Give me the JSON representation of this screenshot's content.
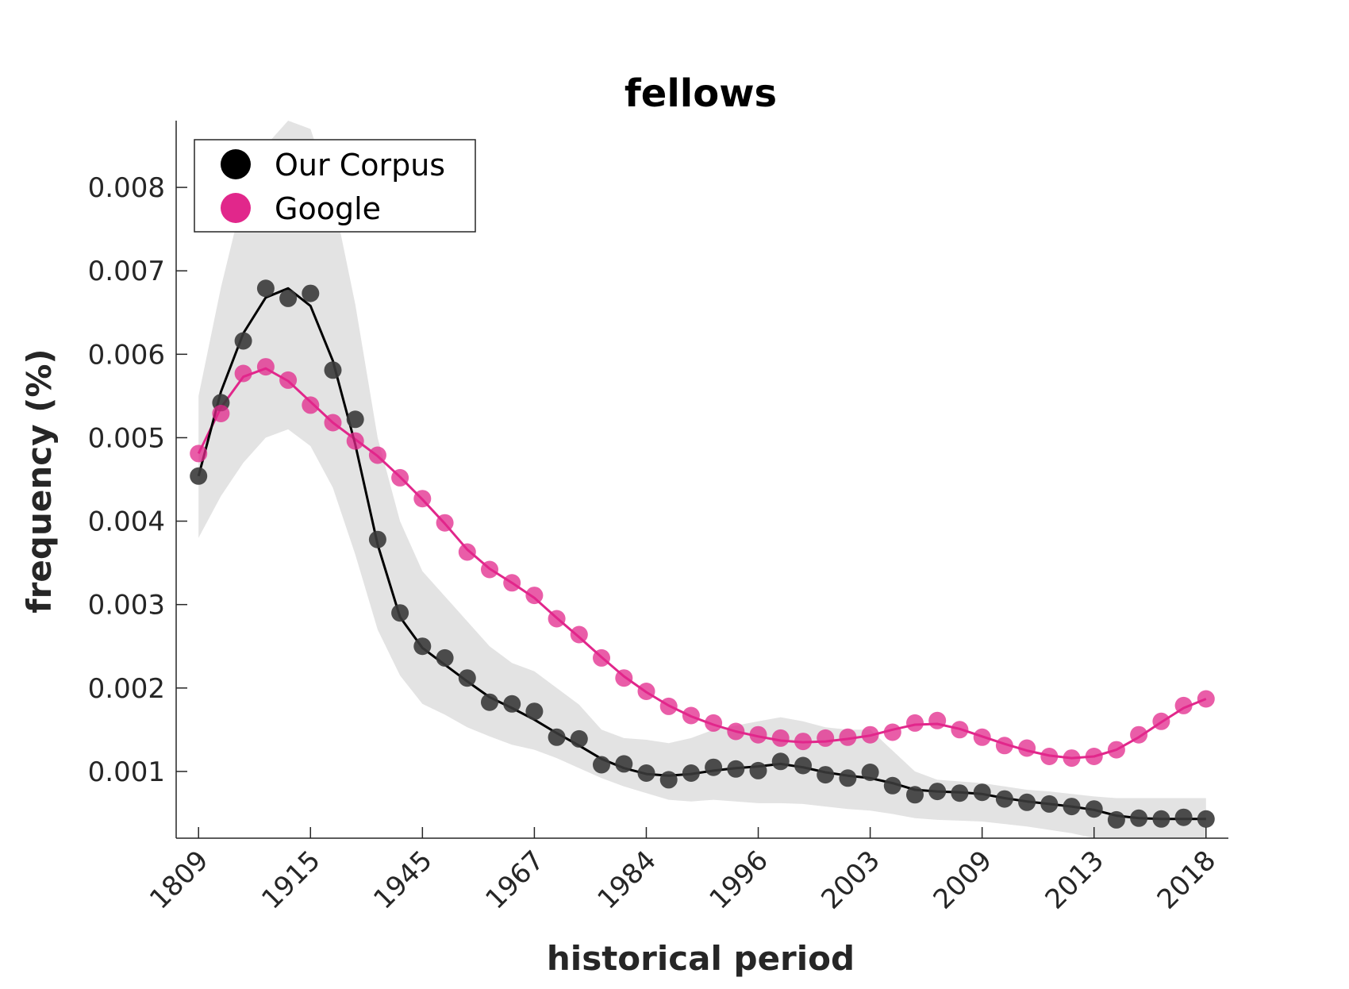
{
  "colors": {
    "corpus": "#000000",
    "corpus_marker": "#3a3a3a",
    "google": "#e1278b",
    "band": "#e3e3e3",
    "axis": "#262626"
  },
  "chart_data": {
    "type": "line",
    "title": "fellows",
    "xlabel": "historical period",
    "ylabel": "frequency (%)",
    "x_tick_labels": [
      "1809",
      "1915",
      "1945",
      "1967",
      "1984",
      "1996",
      "2003",
      "2009",
      "2013",
      "2018"
    ],
    "x_tick_positions": [
      1,
      6,
      11,
      16,
      21,
      26,
      31,
      36,
      41,
      46
    ],
    "x_index": [
      1,
      2,
      3,
      4,
      5,
      6,
      7,
      8,
      9,
      10,
      11,
      12,
      13,
      14,
      15,
      16,
      17,
      18,
      19,
      20,
      21,
      22,
      23,
      24,
      25,
      26,
      27,
      28,
      29,
      30,
      31,
      32,
      33,
      34,
      35,
      36,
      37,
      38,
      39,
      40,
      41,
      42,
      43,
      44,
      45,
      46
    ],
    "xlim": [
      0,
      47
    ],
    "ylim": [
      0.0002,
      0.0088
    ],
    "y_ticks": [
      0.001,
      0.002,
      0.003,
      0.004,
      0.005,
      0.006,
      0.007,
      0.008
    ],
    "y_tick_labels": [
      "0.001",
      "0.002",
      "0.003",
      "0.004",
      "0.005",
      "0.006",
      "0.007",
      "0.008"
    ],
    "legend": {
      "position": "top-left",
      "entries": [
        "Our Corpus",
        "Google"
      ]
    },
    "series": [
      {
        "name": "Our Corpus",
        "markers": [
          0.00454,
          0.00542,
          0.00616,
          0.00679,
          0.00667,
          0.00673,
          0.00581,
          0.00522,
          0.00378,
          0.0029,
          0.0025,
          0.00236,
          0.00212,
          0.00183,
          0.00181,
          0.00172,
          0.00141,
          0.00139,
          0.00108,
          0.00109,
          0.00098,
          0.0009,
          0.00098,
          0.00105,
          0.00103,
          0.00101,
          0.00112,
          0.00107,
          0.00096,
          0.00092,
          0.00099,
          0.00083,
          0.00072,
          0.00076,
          0.00074,
          0.00075,
          0.00067,
          0.00063,
          0.00061,
          0.00058,
          0.00055,
          0.00042,
          0.00044,
          0.00043,
          0.00045,
          0.00043
        ],
        "line": [
          0.00454,
          0.00555,
          0.00625,
          0.00668,
          0.00679,
          0.00658,
          0.00592,
          0.00492,
          0.00372,
          0.00285,
          0.00248,
          0.00228,
          0.00208,
          0.00189,
          0.00176,
          0.00162,
          0.00146,
          0.00131,
          0.00115,
          0.00104,
          0.00097,
          0.00095,
          0.00097,
          0.00101,
          0.00104,
          0.00106,
          0.00109,
          0.00105,
          0.00099,
          0.00095,
          0.00092,
          0.00086,
          0.00078,
          0.00076,
          0.00075,
          0.00073,
          0.00068,
          0.00064,
          0.00061,
          0.00058,
          0.00054,
          0.00047,
          0.00044,
          0.00043,
          0.00043,
          0.00043
        ],
        "band_upper": [
          0.0055,
          0.0068,
          0.0079,
          0.0085,
          0.0088,
          0.0087,
          0.0079,
          0.0066,
          0.005,
          0.004,
          0.0034,
          0.0031,
          0.0028,
          0.0025,
          0.0023,
          0.0022,
          0.002,
          0.0018,
          0.0015,
          0.0014,
          0.00138,
          0.00134,
          0.0014,
          0.0015,
          0.00155,
          0.0016,
          0.00165,
          0.0016,
          0.00153,
          0.0015,
          0.0015,
          0.00125,
          0.001,
          0.0009,
          0.00088,
          0.00086,
          0.00082,
          0.00078,
          0.00076,
          0.00073,
          0.0007,
          0.00068,
          0.00068,
          0.00068,
          0.00068,
          0.00068
        ],
        "band_lower": [
          0.0038,
          0.0043,
          0.0047,
          0.005,
          0.0051,
          0.0049,
          0.0044,
          0.0036,
          0.0027,
          0.00215,
          0.00181,
          0.00168,
          0.00153,
          0.00142,
          0.00132,
          0.00126,
          0.00116,
          0.00104,
          0.00092,
          0.00082,
          0.00074,
          0.00066,
          0.00064,
          0.00066,
          0.00064,
          0.00062,
          0.00062,
          0.00061,
          0.00058,
          0.00055,
          0.00053,
          0.00049,
          0.00044,
          0.00042,
          0.00041,
          0.0004,
          0.00037,
          0.00034,
          0.0003,
          0.00026,
          0.0002,
          0.0002,
          0.0002,
          0.0002,
          0.0002,
          0.0002
        ]
      },
      {
        "name": "Google",
        "markers": [
          0.00481,
          0.00529,
          0.00577,
          0.00585,
          0.00569,
          0.00539,
          0.00518,
          0.00496,
          0.00479,
          0.00452,
          0.00427,
          0.00398,
          0.00363,
          0.00342,
          0.00326,
          0.00311,
          0.00283,
          0.00264,
          0.00236,
          0.00212,
          0.00196,
          0.00178,
          0.00167,
          0.00158,
          0.00148,
          0.00144,
          0.0014,
          0.00136,
          0.0014,
          0.00141,
          0.00144,
          0.00147,
          0.00158,
          0.00161,
          0.0015,
          0.00141,
          0.00131,
          0.00128,
          0.00118,
          0.00116,
          0.00118,
          0.00126,
          0.00144,
          0.0016,
          0.00179,
          0.00187
        ],
        "line": [
          0.00481,
          0.00536,
          0.00573,
          0.00583,
          0.00568,
          0.00543,
          0.00518,
          0.00498,
          0.00478,
          0.00453,
          0.00426,
          0.00397,
          0.00366,
          0.00343,
          0.00326,
          0.00308,
          0.00284,
          0.00261,
          0.00237,
          0.00214,
          0.00195,
          0.00179,
          0.00166,
          0.00156,
          0.00148,
          0.00142,
          0.00137,
          0.00135,
          0.00136,
          0.00139,
          0.00143,
          0.0015,
          0.00156,
          0.00157,
          0.00151,
          0.00142,
          0.00133,
          0.00125,
          0.00119,
          0.00116,
          0.00118,
          0.00126,
          0.00141,
          0.00159,
          0.00176,
          0.00187
        ]
      }
    ]
  }
}
